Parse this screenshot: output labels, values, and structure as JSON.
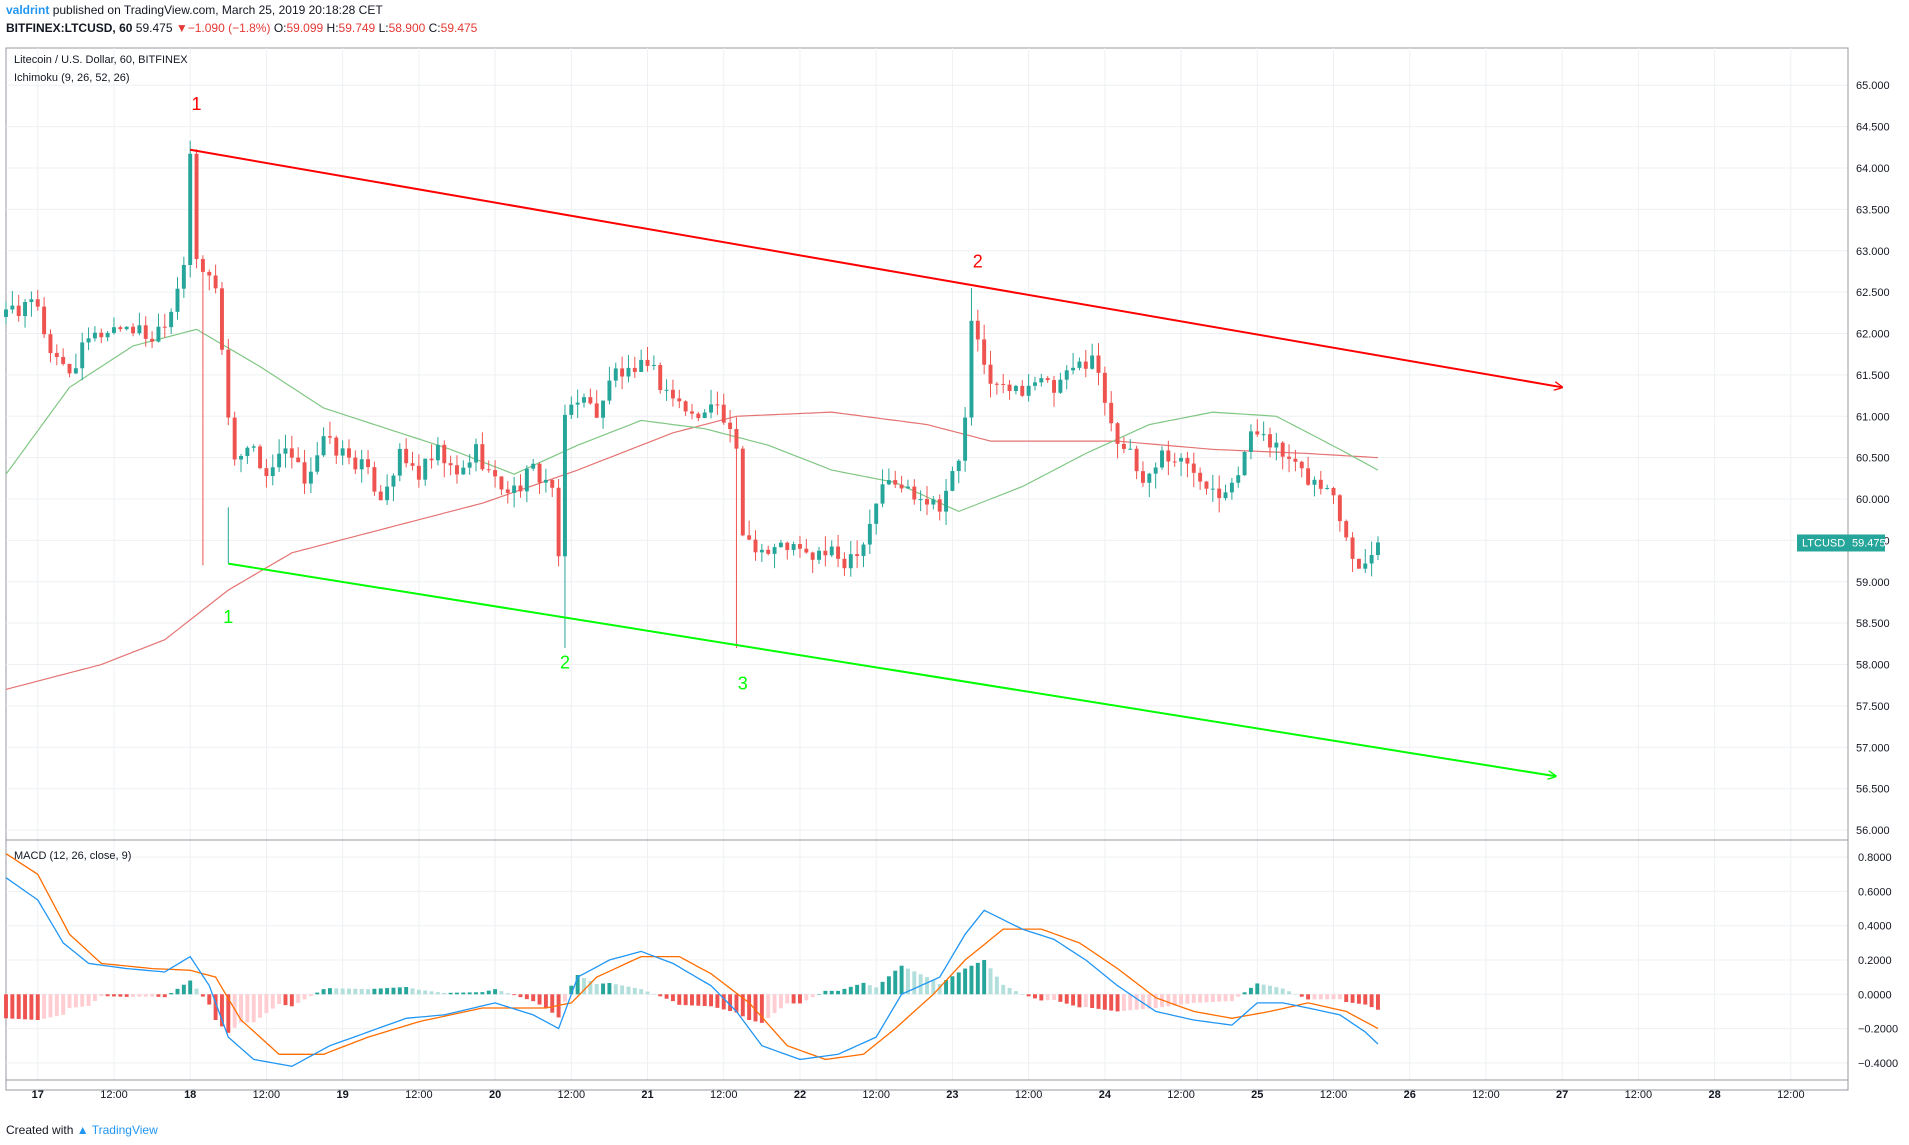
{
  "header": {
    "username": "valdrint",
    "published_text": "published on TradingView.com, March 25, 2019 20:18:28 CET",
    "symbol_line": "BITFINEX:LTCUSD, 60",
    "last": "59.475",
    "change_arrow": "▼",
    "change": "−1.090 (−1.8%)",
    "ohlc": [
      {
        "label": "O:",
        "value": "59.099"
      },
      {
        "label": "H:",
        "value": "59.749"
      },
      {
        "label": "L:",
        "value": "58.900"
      },
      {
        "label": "C:",
        "value": "59.475"
      }
    ]
  },
  "legend": {
    "main_title": "Litecoin / U.S. Dollar, 60, BITFINEX",
    "indicator": "Ichimoku (9, 26, 52, 26)",
    "macd_title": "MACD (12, 26, close, 9)"
  },
  "price_tag": {
    "symbol": "LTCUSD",
    "value": "59.475"
  },
  "footer": {
    "created_with": "Created with",
    "brand": "TradingView"
  },
  "colors": {
    "up": "#26a69a",
    "down": "#ef5350",
    "resistance": "#ff0000",
    "support": "#00ff00",
    "ichimoku_green": "#81c784",
    "ichimoku_red": "#e57373",
    "macd": "#2196f3",
    "signal": "#ff6d00",
    "hist_up_strong": "#26a69a",
    "hist_up_weak": "#b2dfdb",
    "hist_down_strong": "#ef5350",
    "hist_down_weak": "#ffcdd2"
  },
  "chart_data": [
    {
      "type": "candlestick",
      "title": "Litecoin / U.S. Dollar, 60, BITFINEX",
      "ylim": [
        56.0,
        65.0
      ],
      "y_ticks": [
        "56.000",
        "56.500",
        "57.000",
        "57.500",
        "58.000",
        "58.500",
        "59.000",
        "59.500",
        "60.000",
        "60.500",
        "61.000",
        "61.500",
        "62.000",
        "62.500",
        "63.000",
        "63.500",
        "64.000",
        "64.500",
        "65.000"
      ],
      "x_ticks": [
        {
          "label": "17",
          "t": 0,
          "bold": true
        },
        {
          "label": "12:00",
          "t": 12
        },
        {
          "label": "18",
          "t": 24,
          "bold": true
        },
        {
          "label": "12:00",
          "t": 36
        },
        {
          "label": "19",
          "t": 48,
          "bold": true
        },
        {
          "label": "12:00",
          "t": 60
        },
        {
          "label": "20",
          "t": 72,
          "bold": true
        },
        {
          "label": "12:00",
          "t": 84
        },
        {
          "label": "21",
          "t": 96,
          "bold": true
        },
        {
          "label": "12:00",
          "t": 108
        },
        {
          "label": "22",
          "t": 120,
          "bold": true
        },
        {
          "label": "12:00",
          "t": 132
        },
        {
          "label": "23",
          "t": 144,
          "bold": true
        },
        {
          "label": "12:00",
          "t": 156
        },
        {
          "label": "24",
          "t": 168,
          "bold": true
        },
        {
          "label": "12:00",
          "t": 180
        },
        {
          "label": "25",
          "t": 192,
          "bold": true
        },
        {
          "label": "12:00",
          "t": 204
        },
        {
          "label": "26",
          "t": 216,
          "bold": true
        },
        {
          "label": "12:00",
          "t": 228
        },
        {
          "label": "27",
          "t": 240,
          "bold": true
        },
        {
          "label": "12:00",
          "t": 252
        },
        {
          "label": "28",
          "t": 264,
          "bold": true
        },
        {
          "label": "12:00",
          "t": 276
        }
      ],
      "x_range_hours": [
        -5,
        285
      ],
      "ohlc_keypoints": [
        [
          -5,
          62.2
        ],
        [
          0,
          62.35
        ],
        [
          2,
          61.7
        ],
        [
          5,
          61.55
        ],
        [
          8,
          61.9
        ],
        [
          11,
          62.05
        ],
        [
          14,
          62.1
        ],
        [
          18,
          61.95
        ],
        [
          21,
          62.3
        ],
        [
          23,
          62.9
        ],
        [
          24,
          64.2
        ],
        [
          25,
          62.8
        ],
        [
          28,
          62.6
        ],
        [
          30,
          61.0
        ],
        [
          31,
          60.45
        ],
        [
          33,
          60.7
        ],
        [
          36,
          60.3
        ],
        [
          39,
          60.55
        ],
        [
          42,
          60.25
        ],
        [
          45,
          60.7
        ],
        [
          48,
          60.55
        ],
        [
          51,
          60.4
        ],
        [
          54,
          60.05
        ],
        [
          57,
          60.5
        ],
        [
          60,
          60.3
        ],
        [
          63,
          60.55
        ],
        [
          66,
          60.25
        ],
        [
          69,
          60.6
        ],
        [
          72,
          60.2
        ],
        [
          75,
          60.1
        ],
        [
          78,
          60.35
        ],
        [
          81,
          60.15
        ],
        [
          82,
          59.2
        ],
        [
          83,
          61.0
        ],
        [
          85,
          61.25
        ],
        [
          88,
          61.05
        ],
        [
          91,
          61.55
        ],
        [
          94,
          61.45
        ],
        [
          96,
          61.7
        ],
        [
          98,
          61.4
        ],
        [
          101,
          61.15
        ],
        [
          104,
          60.95
        ],
        [
          106,
          61.25
        ],
        [
          108,
          60.95
        ],
        [
          110,
          60.55
        ],
        [
          111,
          59.6
        ],
        [
          113,
          59.45
        ],
        [
          115,
          59.35
        ],
        [
          118,
          59.45
        ],
        [
          121,
          59.3
        ],
        [
          124,
          59.35
        ],
        [
          127,
          59.25
        ],
        [
          130,
          59.5
        ],
        [
          133,
          60.2
        ],
        [
          136,
          60.15
        ],
        [
          139,
          60.05
        ],
        [
          142,
          59.95
        ],
        [
          145,
          60.45
        ],
        [
          146,
          61.0
        ],
        [
          147,
          62.1
        ],
        [
          149,
          61.6
        ],
        [
          151,
          61.35
        ],
        [
          154,
          61.3
        ],
        [
          157,
          61.45
        ],
        [
          160,
          61.3
        ],
        [
          163,
          61.55
        ],
        [
          166,
          61.75
        ],
        [
          168,
          61.2
        ],
        [
          170,
          60.75
        ],
        [
          172,
          60.5
        ],
        [
          174,
          60.2
        ],
        [
          177,
          60.55
        ],
        [
          180,
          60.45
        ],
        [
          183,
          60.3
        ],
        [
          186,
          60.1
        ],
        [
          189,
          60.35
        ],
        [
          191,
          60.75
        ],
        [
          193,
          60.85
        ],
        [
          195,
          60.6
        ],
        [
          198,
          60.35
        ],
        [
          201,
          60.2
        ],
        [
          204,
          60.05
        ],
        [
          206,
          59.6
        ],
        [
          208,
          59.15
        ],
        [
          210,
          59.4
        ],
        [
          211,
          59.475
        ]
      ],
      "notable_wicks": [
        {
          "t": 24,
          "high": 64.2
        },
        {
          "t": 26,
          "low": 59.2
        },
        {
          "t": 83,
          "low": 58.2
        },
        {
          "t": 110,
          "low": 58.2
        },
        {
          "t": 147,
          "high": 62.55
        }
      ],
      "ichimoku_green_keypoints": [
        [
          -5,
          60.3
        ],
        [
          5,
          61.35
        ],
        [
          15,
          61.85
        ],
        [
          25,
          62.05
        ],
        [
          35,
          61.6
        ],
        [
          45,
          61.1
        ],
        [
          55,
          60.85
        ],
        [
          65,
          60.6
        ],
        [
          75,
          60.3
        ],
        [
          85,
          60.65
        ],
        [
          95,
          60.95
        ],
        [
          105,
          60.85
        ],
        [
          115,
          60.65
        ],
        [
          125,
          60.35
        ],
        [
          135,
          60.2
        ],
        [
          145,
          59.85
        ],
        [
          155,
          60.15
        ],
        [
          165,
          60.55
        ],
        [
          175,
          60.9
        ],
        [
          185,
          61.05
        ],
        [
          195,
          61.0
        ],
        [
          205,
          60.6
        ],
        [
          211,
          60.35
        ]
      ],
      "ichimoku_red_keypoints": [
        [
          -5,
          57.7
        ],
        [
          10,
          58.0
        ],
        [
          20,
          58.3
        ],
        [
          30,
          58.9
        ],
        [
          40,
          59.35
        ],
        [
          55,
          59.65
        ],
        [
          70,
          59.95
        ],
        [
          85,
          60.35
        ],
        [
          100,
          60.8
        ],
        [
          110,
          61.0
        ],
        [
          125,
          61.05
        ],
        [
          140,
          60.9
        ],
        [
          150,
          60.7
        ],
        [
          170,
          60.7
        ],
        [
          185,
          60.6
        ],
        [
          200,
          60.55
        ],
        [
          211,
          60.5
        ]
      ],
      "trendlines": [
        {
          "name": "resistance",
          "from": [
            24,
            64.22
          ],
          "to": [
            240,
            61.35
          ],
          "color": "#ff0000"
        },
        {
          "name": "support",
          "from": [
            30,
            59.22
          ],
          "to": [
            239,
            56.65
          ],
          "color": "#00ff00"
        }
      ],
      "annotations": [
        {
          "text": "1",
          "t": 25,
          "price": 64.7,
          "color": "#ff0000"
        },
        {
          "text": "2",
          "t": 148,
          "price": 62.8,
          "color": "#ff0000"
        },
        {
          "text": "1",
          "t": 30,
          "price": 58.5,
          "color": "#00ff00"
        },
        {
          "text": "2",
          "t": 83,
          "price": 57.95,
          "color": "#00ff00"
        },
        {
          "text": "3",
          "t": 111,
          "price": 57.7,
          "color": "#00ff00"
        }
      ],
      "last_price": 59.475
    },
    {
      "type": "macd",
      "title": "MACD (12, 26, close, 9)",
      "ylim": [
        -0.5,
        0.9
      ],
      "y_ticks": [
        "−0.4000",
        "−0.2000",
        "0.0000",
        "0.2000",
        "0.4000",
        "0.6000",
        "0.8000"
      ],
      "macd_keypoints": [
        [
          -5,
          0.68
        ],
        [
          0,
          0.55
        ],
        [
          4,
          0.3
        ],
        [
          8,
          0.18
        ],
        [
          14,
          0.15
        ],
        [
          20,
          0.13
        ],
        [
          24,
          0.22
        ],
        [
          27,
          0.05
        ],
        [
          30,
          -0.25
        ],
        [
          34,
          -0.38
        ],
        [
          40,
          -0.42
        ],
        [
          46,
          -0.3
        ],
        [
          52,
          -0.22
        ],
        [
          58,
          -0.14
        ],
        [
          64,
          -0.12
        ],
        [
          72,
          -0.05
        ],
        [
          78,
          -0.12
        ],
        [
          82,
          -0.2
        ],
        [
          85,
          0.1
        ],
        [
          90,
          0.2
        ],
        [
          95,
          0.25
        ],
        [
          100,
          0.18
        ],
        [
          106,
          0.05
        ],
        [
          110,
          -0.1
        ],
        [
          114,
          -0.3
        ],
        [
          120,
          -0.38
        ],
        [
          126,
          -0.35
        ],
        [
          132,
          -0.25
        ],
        [
          136,
          0.0
        ],
        [
          142,
          0.1
        ],
        [
          146,
          0.35
        ],
        [
          149,
          0.49
        ],
        [
          155,
          0.38
        ],
        [
          160,
          0.32
        ],
        [
          165,
          0.2
        ],
        [
          170,
          0.05
        ],
        [
          176,
          -0.1
        ],
        [
          182,
          -0.15
        ],
        [
          188,
          -0.18
        ],
        [
          192,
          -0.05
        ],
        [
          196,
          -0.05
        ],
        [
          200,
          -0.08
        ],
        [
          205,
          -0.12
        ],
        [
          209,
          -0.22
        ],
        [
          211,
          -0.29
        ]
      ],
      "signal_keypoints": [
        [
          -5,
          0.82
        ],
        [
          0,
          0.7
        ],
        [
          5,
          0.35
        ],
        [
          10,
          0.18
        ],
        [
          18,
          0.15
        ],
        [
          24,
          0.14
        ],
        [
          28,
          0.1
        ],
        [
          32,
          -0.15
        ],
        [
          38,
          -0.35
        ],
        [
          45,
          -0.35
        ],
        [
          52,
          -0.25
        ],
        [
          60,
          -0.16
        ],
        [
          70,
          -0.08
        ],
        [
          80,
          -0.08
        ],
        [
          84,
          -0.05
        ],
        [
          88,
          0.1
        ],
        [
          95,
          0.22
        ],
        [
          101,
          0.22
        ],
        [
          106,
          0.12
        ],
        [
          112,
          -0.05
        ],
        [
          118,
          -0.3
        ],
        [
          124,
          -0.38
        ],
        [
          130,
          -0.35
        ],
        [
          135,
          -0.2
        ],
        [
          141,
          0.0
        ],
        [
          146,
          0.2
        ],
        [
          152,
          0.38
        ],
        [
          158,
          0.38
        ],
        [
          164,
          0.3
        ],
        [
          170,
          0.15
        ],
        [
          176,
          -0.02
        ],
        [
          182,
          -0.1
        ],
        [
          188,
          -0.14
        ],
        [
          194,
          -0.1
        ],
        [
          200,
          -0.05
        ],
        [
          206,
          -0.1
        ],
        [
          211,
          -0.2
        ]
      ],
      "histogram_note": "MACD minus signal, drawn for each hourly bar"
    }
  ]
}
